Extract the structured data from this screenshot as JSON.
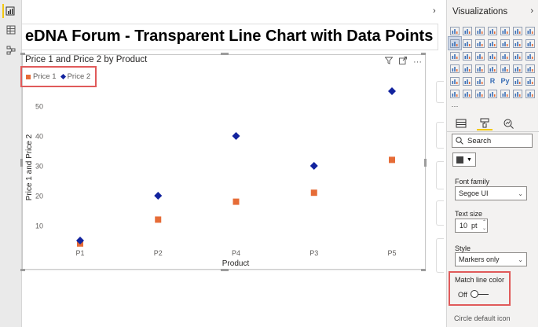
{
  "page": {
    "title": "eDNA Forum - Transparent Line Chart with Data Points"
  },
  "rail": {
    "icons": [
      "report-icon",
      "table-icon",
      "model-icon"
    ]
  },
  "visual": {
    "title": "Price 1 and Price 2 by Product",
    "legend": [
      {
        "label": "Price 1",
        "color": "#e66c37",
        "marker": "square"
      },
      {
        "label": "Price 2",
        "color": "#12239e",
        "marker": "diamond"
      }
    ],
    "header_icons": [
      "filter-icon",
      "focus-mode-icon",
      "more-options-icon"
    ]
  },
  "chart_data": {
    "type": "scatter",
    "title": "Price 1 and Price 2 by Product",
    "xlabel": "Product",
    "ylabel": "Price 1 and Price 2",
    "categories": [
      "P1",
      "P2",
      "P4",
      "P3",
      "P5"
    ],
    "series": [
      {
        "name": "Price 1",
        "values": [
          4,
          12,
          18,
          21,
          32
        ],
        "color": "#e66c37",
        "marker": "square"
      },
      {
        "name": "Price 2",
        "values": [
          5,
          20,
          40,
          30,
          55
        ],
        "color": "#12239e",
        "marker": "diamond"
      }
    ],
    "yticks": [
      10,
      20,
      30,
      40,
      50
    ],
    "ylim": [
      3,
      60
    ],
    "grid": false,
    "legend_position": "top-left"
  },
  "pane": {
    "title": "Visualizations",
    "search_placeholder": "Search",
    "color_value": "#404040",
    "font_family_label": "Font family",
    "font_family_value": "Segoe UI",
    "text_size_label": "Text size",
    "text_size_value": "10",
    "text_size_unit": "pt",
    "style_label": "Style",
    "style_value": "Markers only",
    "match_line_color_label": "Match line color",
    "toggle_state": "Off",
    "cut_label": "Circle default icon",
    "ellipsis": "···"
  }
}
